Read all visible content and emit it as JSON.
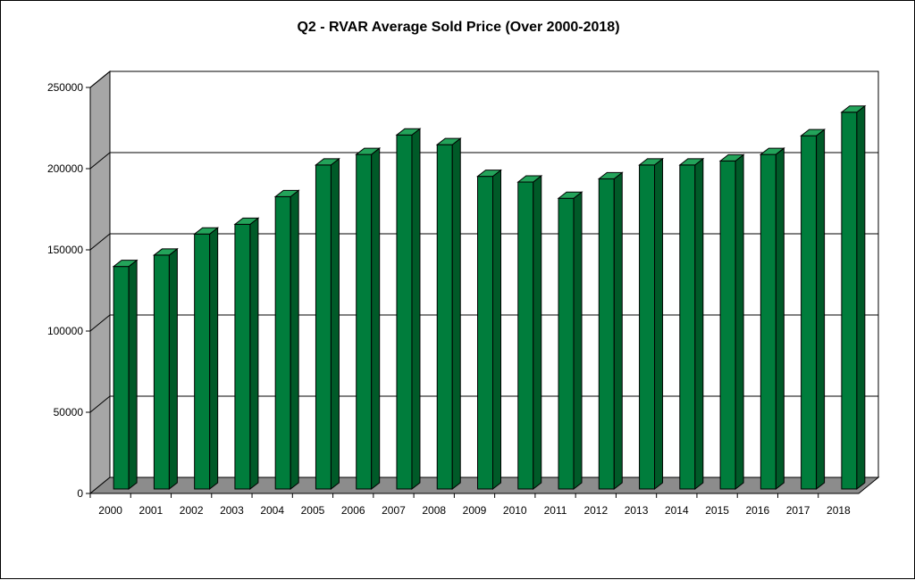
{
  "chart_data": {
    "type": "bar",
    "title": "Q2 - RVAR Average Sold Price (Over 2000-2018)",
    "xlabel": "",
    "ylabel": "",
    "categories": [
      "2000",
      "2001",
      "2002",
      "2003",
      "2004",
      "2005",
      "2006",
      "2007",
      "2008",
      "2009",
      "2010",
      "2011",
      "2012",
      "2013",
      "2014",
      "2015",
      "2016",
      "2017",
      "2018"
    ],
    "values": [
      137000,
      144000,
      157000,
      163000,
      180000,
      199500,
      206000,
      218000,
      212000,
      192500,
      189000,
      179000,
      191000,
      199500,
      199500,
      202000,
      206000,
      217500,
      232000
    ],
    "ylim": [
      0,
      250000
    ],
    "yticks": [
      "0",
      "50000",
      "100000",
      "150000",
      "200000",
      "250000"
    ],
    "grid": true,
    "legend": "none",
    "style_3d": true,
    "colors": {
      "bar_front": "#007d3c",
      "bar_side": "#005a28",
      "bar_top": "#23a35a",
      "back_wall": "#ffffff",
      "side_wall": "#a6a6a6",
      "floor": "#8c8c8c",
      "grid": "#000000"
    }
  }
}
